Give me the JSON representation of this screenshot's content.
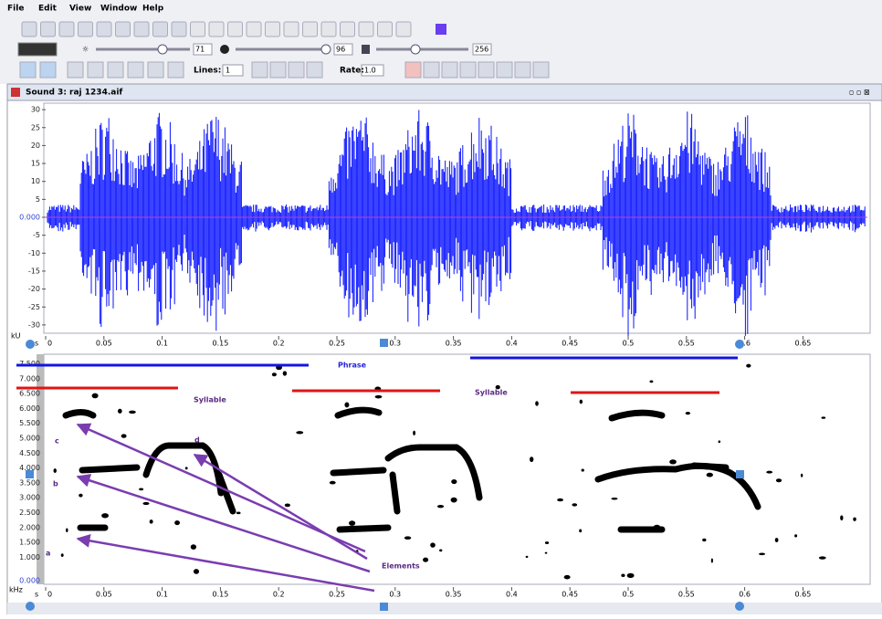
{
  "menu": [
    "File",
    "Edit",
    "View",
    "Window",
    "Help"
  ],
  "toolbar": {
    "brightness": "71",
    "contrast": "96",
    "colormap": "256",
    "lines_label": "Lines:",
    "lines": "1",
    "rate_label": "Rate:",
    "rate": "1.0"
  },
  "window_title": "Sound 3: raj 1234.aif",
  "waveform": {
    "unit": "kU",
    "yticks": [
      "30",
      "25",
      "20",
      "15",
      "10",
      "5",
      "0.000",
      "-5",
      "-10",
      "-15",
      "-20",
      "-25",
      "-30"
    ],
    "time_unit": "s",
    "xticks": [
      "0",
      "0.05",
      "0.1",
      "0.15",
      "0.2",
      "0.25",
      "0.3",
      "0.35",
      "0.4",
      "0.45",
      "0.5",
      "0.55",
      "0.6",
      "0.65"
    ]
  },
  "spectrogram": {
    "unit": "kHz",
    "yticks": [
      "7.500",
      "7.000",
      "6.500",
      "6.000",
      "5.500",
      "5.000",
      "4.500",
      "4.000",
      "3.500",
      "3.000",
      "2.500",
      "2.000",
      "1.500",
      "1.000",
      "0.000"
    ],
    "time_unit": "s",
    "xticks": [
      "0",
      "0.05",
      "0.1",
      "0.15",
      "0.2",
      "0.25",
      "0.3",
      "0.35",
      "0.4",
      "0.45",
      "0.5",
      "0.55",
      "0.6",
      "0.65"
    ]
  },
  "annotations": {
    "phrase": "Phrase",
    "syllable_1": "Syllable",
    "syllable_2": "Syllable",
    "letter_a": "a",
    "letter_b": "b",
    "letter_c": "c",
    "letter_d": "d",
    "elements": "Elements"
  }
}
